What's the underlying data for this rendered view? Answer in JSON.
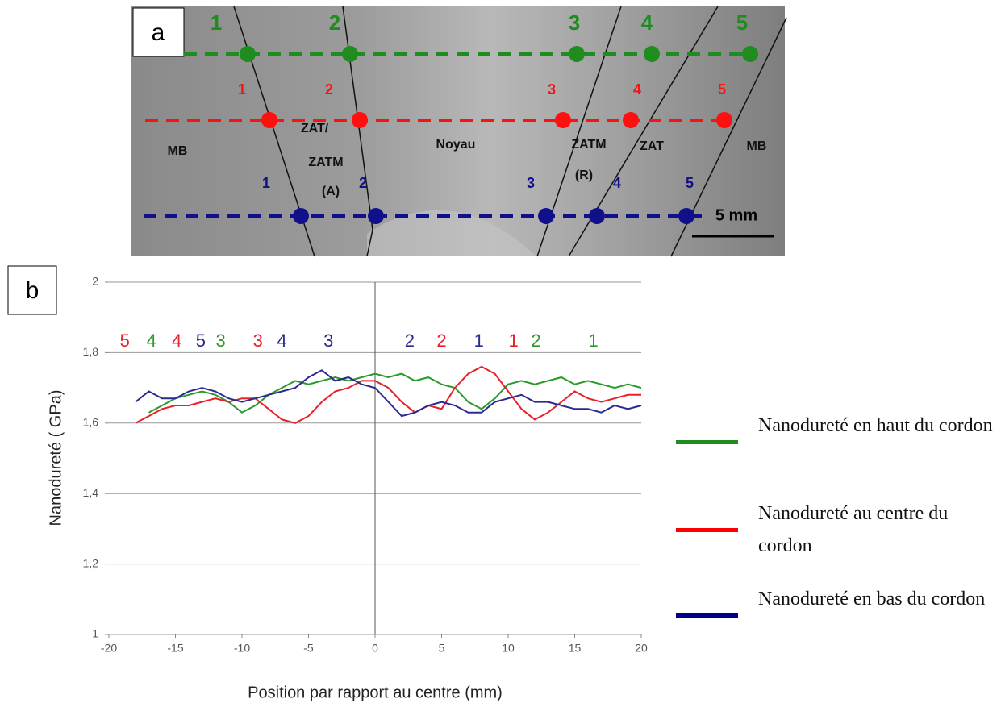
{
  "panel_a": {
    "label": "a",
    "rows": [
      {
        "color": "#1e8c1e",
        "numbers": [
          "1",
          "2",
          "3",
          "4",
          "5"
        ]
      },
      {
        "color": "#ff1010",
        "numbers": [
          "1",
          "2",
          "3",
          "4",
          "5"
        ]
      },
      {
        "color": "#10108a",
        "numbers": [
          "1",
          "2",
          "3",
          "4",
          "5"
        ]
      }
    ],
    "zones": [
      "MB",
      "ZAT/",
      "ZATM",
      "(A)",
      "Noyau",
      "ZATM",
      "(R)",
      "ZAT",
      "MB"
    ],
    "scale": "5 mm"
  },
  "chart_data": {
    "type": "line",
    "panel_label": "b",
    "x_label": "Position par rapport au centre (mm)",
    "y_label": "Nanodureté ( GPa)",
    "x": [
      -18,
      -17,
      -16,
      -15,
      -14,
      -13,
      -12,
      -11,
      -10,
      -9,
      -8,
      -7,
      -6,
      -5,
      -4,
      -3,
      -2,
      -1,
      0,
      1,
      2,
      3,
      4,
      5,
      6,
      7,
      8,
      9,
      10,
      11,
      12,
      13,
      14,
      15,
      16,
      17,
      18,
      19,
      20
    ],
    "series": [
      {
        "name": "Nanodureté en haut du cordon",
        "color": "#1e8c1e",
        "line_color": "#2a9a2a",
        "values": [
          null,
          1.63,
          1.65,
          1.67,
          1.68,
          1.69,
          1.68,
          1.66,
          1.63,
          1.65,
          1.68,
          1.7,
          1.72,
          1.71,
          1.72,
          1.73,
          1.72,
          1.73,
          1.74,
          1.73,
          1.74,
          1.72,
          1.73,
          1.71,
          1.7,
          1.66,
          1.64,
          1.67,
          1.71,
          1.72,
          1.71,
          1.72,
          1.73,
          1.71,
          1.72,
          1.71,
          1.7,
          1.71,
          1.7
        ]
      },
      {
        "name": "Nanodureté au centre du cordon",
        "color": "#ff0000",
        "line_color": "#e8202a",
        "values": [
          1.6,
          1.62,
          1.64,
          1.65,
          1.65,
          1.66,
          1.67,
          1.66,
          1.67,
          1.67,
          1.64,
          1.61,
          1.6,
          1.62,
          1.66,
          1.69,
          1.7,
          1.72,
          1.72,
          1.7,
          1.66,
          1.63,
          1.65,
          1.64,
          1.7,
          1.74,
          1.76,
          1.74,
          1.69,
          1.64,
          1.61,
          1.63,
          1.66,
          1.69,
          1.67,
          1.66,
          1.67,
          1.68,
          1.68
        ]
      },
      {
        "name": "Nanodureté en bas du cordon",
        "color": "#00008b",
        "line_color": "#2a2a90",
        "values": [
          1.66,
          1.69,
          1.67,
          1.67,
          1.69,
          1.7,
          1.69,
          1.67,
          1.66,
          1.67,
          1.68,
          1.69,
          1.7,
          1.73,
          1.75,
          1.72,
          1.73,
          1.71,
          1.7,
          1.66,
          1.62,
          1.63,
          1.65,
          1.66,
          1.65,
          1.63,
          1.63,
          1.66,
          1.67,
          1.68,
          1.66,
          1.66,
          1.65,
          1.64,
          1.64,
          1.63,
          1.65,
          1.64,
          1.65
        ]
      }
    ],
    "xlim": [
      -20,
      20
    ],
    "xticks": [
      -20,
      -15,
      -10,
      -5,
      0,
      5,
      10,
      15,
      20
    ],
    "ylim": [
      1,
      2
    ],
    "yticks": [
      1,
      {
        "value": 1.2,
        "label": "1,2"
      },
      {
        "value": 1.4,
        "label": "1,4"
      },
      {
        "value": 1.6,
        "label": "1,6"
      },
      {
        "value": 1.8,
        "label": "1,8"
      },
      2
    ],
    "grid": true,
    "annotations": [
      {
        "text": "5",
        "x": -18.8,
        "y": 1.83,
        "color": "#e8202a"
      },
      {
        "text": "4",
        "x": -16.8,
        "y": 1.83,
        "color": "#2a9a2a"
      },
      {
        "text": "4",
        "x": -14.9,
        "y": 1.83,
        "color": "#e8202a"
      },
      {
        "text": "5",
        "x": -13.1,
        "y": 1.83,
        "color": "#2a2a90"
      },
      {
        "text": "3",
        "x": -11.6,
        "y": 1.83,
        "color": "#2a9a2a"
      },
      {
        "text": "3",
        "x": -8.8,
        "y": 1.83,
        "color": "#e8202a"
      },
      {
        "text": "4",
        "x": -7,
        "y": 1.83,
        "color": "#2a2a90"
      },
      {
        "text": "3",
        "x": -3.5,
        "y": 1.83,
        "color": "#2a2a90"
      },
      {
        "text": "2",
        "x": 2.6,
        "y": 1.83,
        "color": "#2a2a90"
      },
      {
        "text": "2",
        "x": 5,
        "y": 1.83,
        "color": "#e8202a"
      },
      {
        "text": "1",
        "x": 7.8,
        "y": 1.83,
        "color": "#2a2a90"
      },
      {
        "text": "1",
        "x": 10.4,
        "y": 1.83,
        "color": "#e8202a"
      },
      {
        "text": "2",
        "x": 12.1,
        "y": 1.83,
        "color": "#2a9a2a"
      },
      {
        "text": "1",
        "x": 16.4,
        "y": 1.83,
        "color": "#2a9a2a"
      }
    ]
  }
}
